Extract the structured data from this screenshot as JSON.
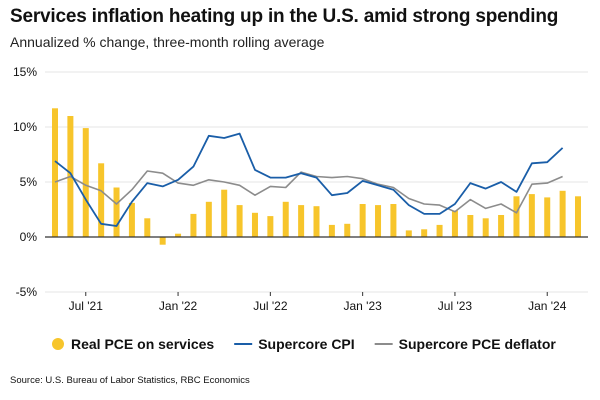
{
  "title": "Services inflation heating up in the U.S. amid strong spending",
  "subtitle": "Annualized % change, three-month rolling average",
  "source": "Source: U.S. Bureau of Labor Statistics, RBC Economics",
  "colors": {
    "bars": "#F7C52B",
    "cpi": "#1A5EA8",
    "pce": "#8C8C8C",
    "grid": "#E6E6E6",
    "axis": "#333333"
  },
  "chart_data": {
    "type": "bar",
    "x_start": "May 2021",
    "x_end": "Mar 2024",
    "categories": [
      "May 2021",
      "Jun 2021",
      "Jul 2021",
      "Aug 2021",
      "Sep 2021",
      "Oct 2021",
      "Nov 2021",
      "Dec 2021",
      "Jan 2022",
      "Feb 2022",
      "Mar 2022",
      "Apr 2022",
      "May 2022",
      "Jun 2022",
      "Jul 2022",
      "Aug 2022",
      "Sep 2022",
      "Oct 2022",
      "Nov 2022",
      "Dec 2022",
      "Jan 2023",
      "Feb 2023",
      "Mar 2023",
      "Apr 2023",
      "May 2023",
      "Jun 2023",
      "Jul 2023",
      "Aug 2023",
      "Sep 2023",
      "Oct 2023",
      "Nov 2023",
      "Dec 2023",
      "Jan 2024",
      "Feb 2024",
      "Mar 2024"
    ],
    "x_tick_labels": [
      {
        "label": "Jul '21",
        "index": 2
      },
      {
        "label": "Jan '22",
        "index": 8
      },
      {
        "label": "Jul '22",
        "index": 14
      },
      {
        "label": "Jan '23",
        "index": 20
      },
      {
        "label": "Jul '23",
        "index": 26
      },
      {
        "label": "Jan '24",
        "index": 32
      }
    ],
    "ylim": [
      -5,
      15
    ],
    "y_ticks": [
      {
        "value": 15,
        "label": "15%"
      },
      {
        "value": 10,
        "label": "10%"
      },
      {
        "value": 5,
        "label": "5%"
      },
      {
        "value": 0,
        "label": "0%"
      },
      {
        "value": -5,
        "label": "-5%"
      }
    ],
    "grid": true,
    "legend_position": "bottom",
    "series": [
      {
        "name": "Real PCE on services",
        "type": "bar",
        "values": [
          11.7,
          11.0,
          9.9,
          6.7,
          4.5,
          3.1,
          1.7,
          -0.7,
          0.3,
          2.1,
          3.2,
          4.3,
          2.9,
          2.2,
          1.9,
          3.2,
          2.9,
          2.8,
          1.1,
          1.2,
          3.0,
          2.9,
          3.0,
          0.6,
          0.7,
          1.1,
          2.4,
          2.0,
          1.7,
          2.0,
          3.7,
          3.9,
          3.6,
          4.2,
          3.7
        ]
      },
      {
        "name": "Supercore CPI",
        "type": "line",
        "values": [
          6.9,
          5.8,
          3.4,
          1.2,
          1.0,
          3.2,
          4.9,
          4.6,
          5.2,
          6.4,
          9.2,
          9.0,
          9.4,
          6.1,
          5.4,
          5.4,
          5.8,
          5.4,
          3.8,
          4.0,
          5.1,
          4.7,
          4.3,
          2.9,
          2.1,
          2.1,
          3.0,
          4.9,
          4.4,
          5.0,
          4.1,
          6.7,
          6.8,
          8.1,
          null
        ]
      },
      {
        "name": "Supercore PCE deflator",
        "type": "line",
        "values": [
          5.0,
          5.5,
          4.7,
          4.2,
          3.0,
          4.3,
          6.0,
          5.8,
          4.9,
          4.7,
          5.2,
          5.0,
          4.7,
          3.8,
          4.6,
          4.5,
          5.9,
          5.5,
          5.4,
          5.5,
          5.3,
          4.8,
          4.5,
          3.5,
          3.0,
          2.9,
          2.3,
          3.4,
          2.6,
          3.0,
          2.2,
          4.8,
          4.9,
          5.5,
          null
        ]
      }
    ]
  }
}
